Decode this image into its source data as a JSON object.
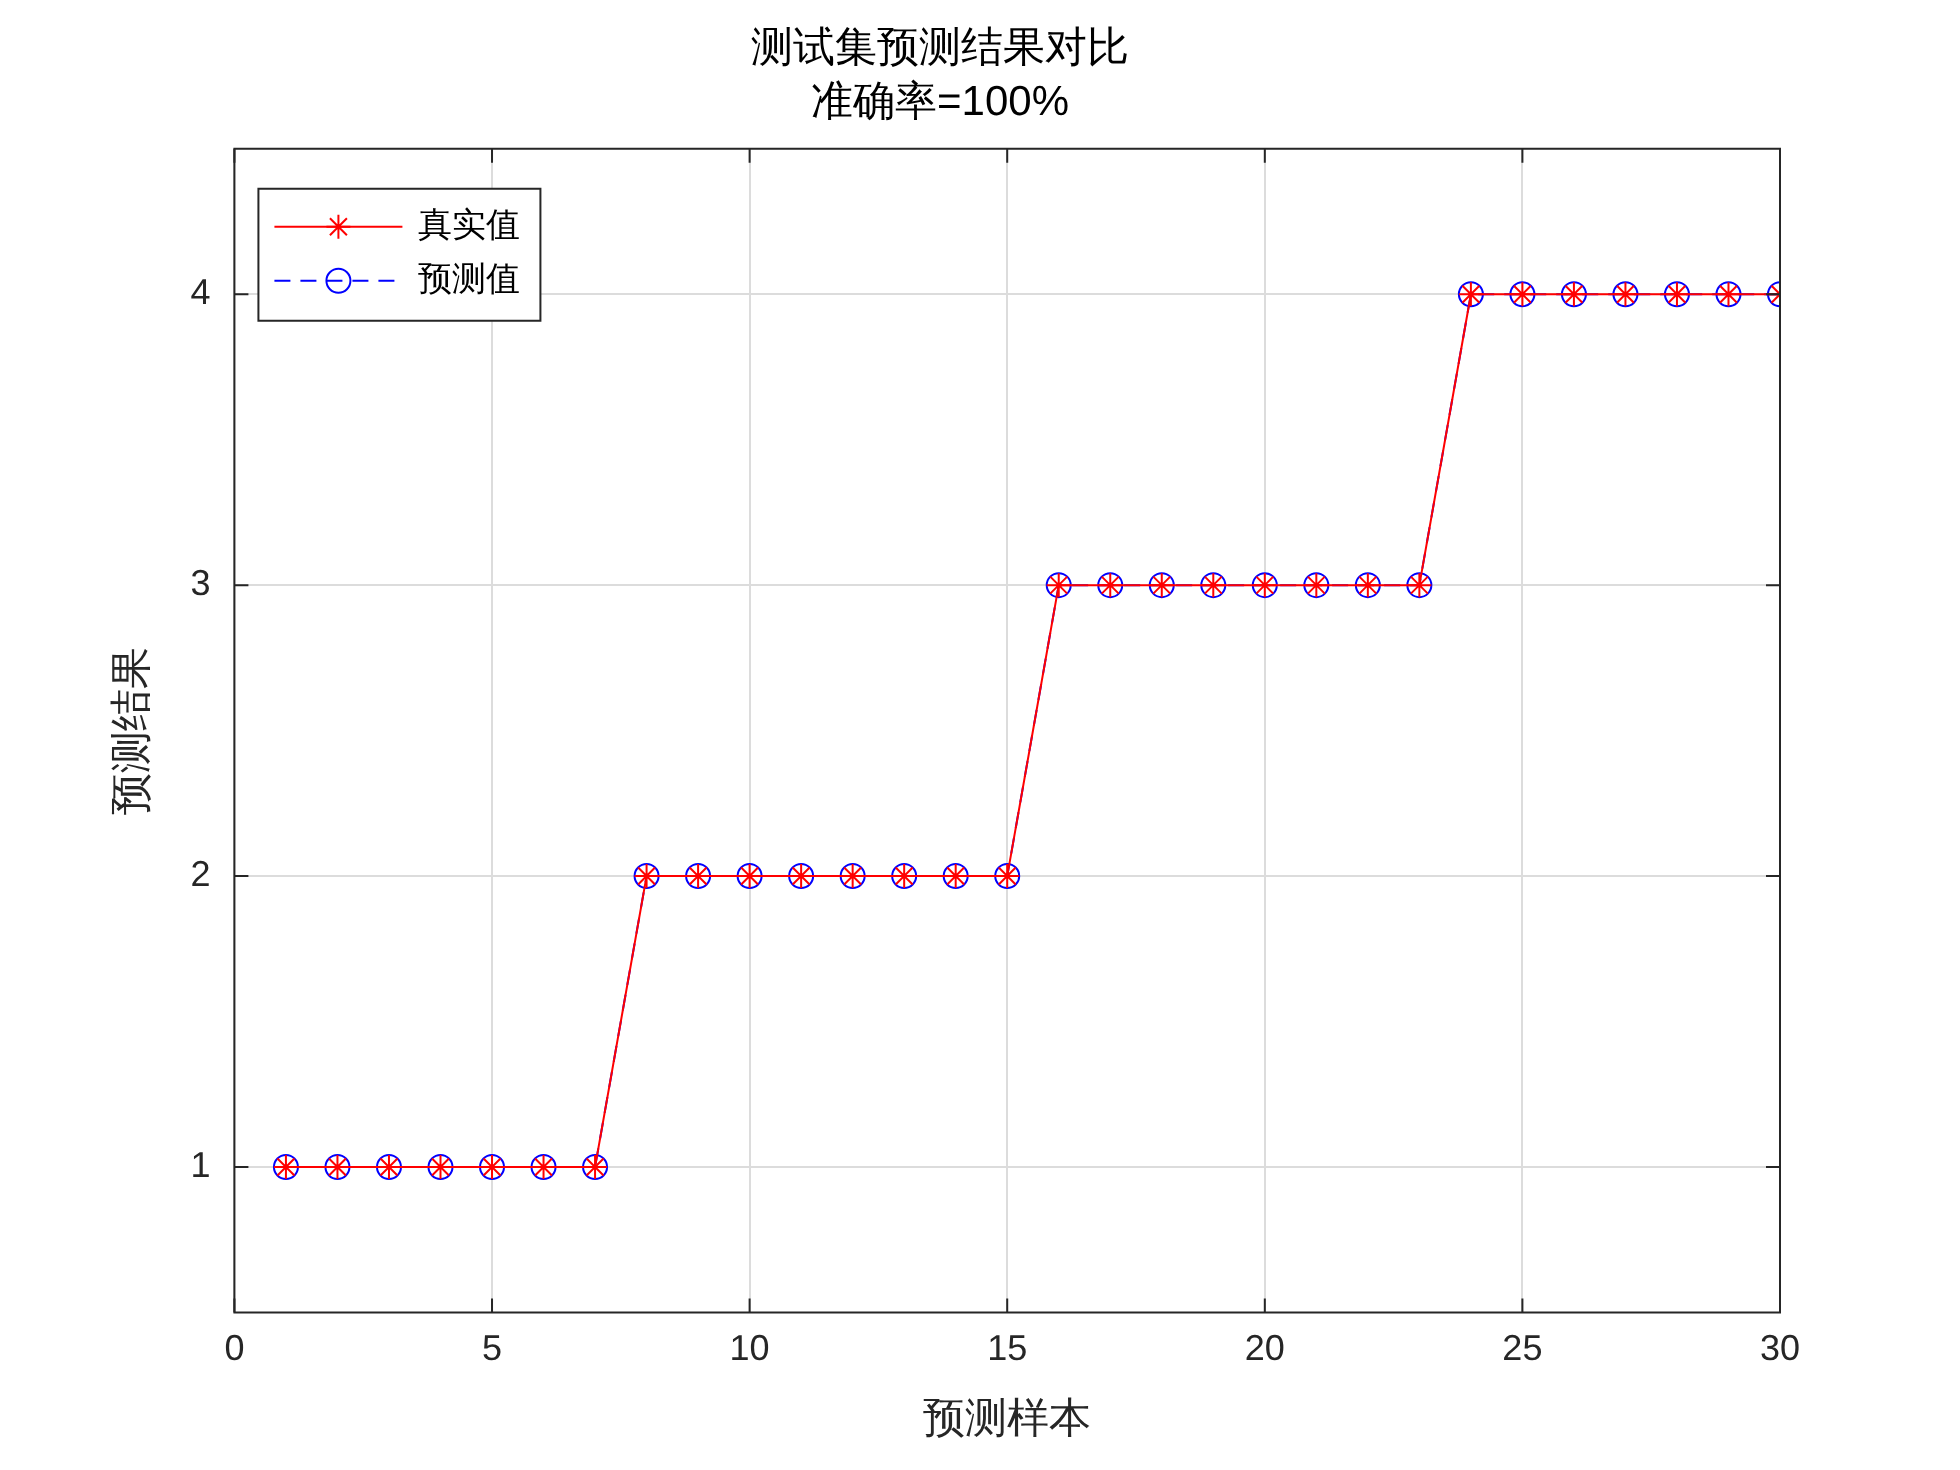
{
  "chart_data": {
    "type": "line",
    "title": "测试集预测结果对比",
    "subtitle": "准确率=100%",
    "xlabel": "预测样本",
    "ylabel": "预测结果",
    "x": [
      1,
      2,
      3,
      4,
      5,
      6,
      7,
      8,
      9,
      10,
      11,
      12,
      13,
      14,
      15,
      16,
      17,
      18,
      19,
      20,
      21,
      22,
      23,
      24,
      25,
      26,
      27,
      28,
      29,
      30
    ],
    "series": [
      {
        "name": "真实值",
        "color": "#ff0000",
        "marker": "cross",
        "line_style": "solid",
        "values": [
          1,
          1,
          1,
          1,
          1,
          1,
          1,
          2,
          2,
          2,
          2,
          2,
          2,
          2,
          2,
          3,
          3,
          3,
          3,
          3,
          3,
          3,
          3,
          4,
          4,
          4,
          4,
          4,
          4,
          4
        ]
      },
      {
        "name": "预测值",
        "color": "#0000ff",
        "marker": "circle",
        "line_style": "dashed",
        "values": [
          1,
          1,
          1,
          1,
          1,
          1,
          1,
          2,
          2,
          2,
          2,
          2,
          2,
          2,
          2,
          3,
          3,
          3,
          3,
          3,
          3,
          3,
          3,
          4,
          4,
          4,
          4,
          4,
          4,
          4
        ]
      }
    ],
    "xlim": [
      0,
      30
    ],
    "xticks": [
      0,
      5,
      10,
      15,
      20,
      25,
      30
    ],
    "ylim": [
      0.5,
      4.5
    ],
    "yticks": [
      1,
      2,
      3,
      4
    ],
    "grid": true,
    "legend": "top left"
  }
}
